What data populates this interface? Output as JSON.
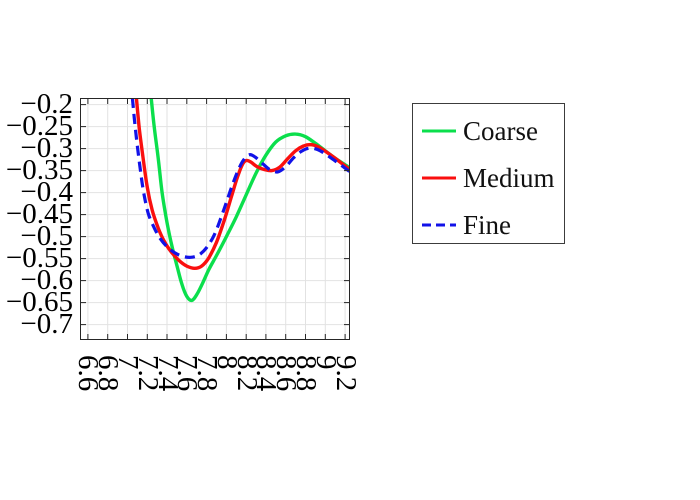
{
  "figure": {
    "background": "#ffffff"
  },
  "chart_data": {
    "type": "line",
    "title": "",
    "xlabel": "",
    "ylabel": "",
    "xlim": [
      6.52,
      9.25
    ],
    "ylim": [
      -0.735,
      -0.185
    ],
    "grid": true,
    "axis_color": "#262626",
    "grid_color": "#e2e2e2",
    "tick_label_color": "#000000",
    "x_ticks": {
      "values": [
        6.6,
        6.8,
        7,
        7.2,
        7.4,
        7.6,
        7.8,
        8,
        8.2,
        8.4,
        8.6,
        8.8,
        9,
        9.2
      ],
      "labels": [
        "6.6",
        "6.8",
        "7",
        "7.2",
        "7.4",
        "7.6",
        "7.8",
        "8",
        "8.2",
        "8.4",
        "8.6",
        "8.8",
        "9",
        "9.2"
      ],
      "rotation_deg": 90
    },
    "y_ticks": {
      "values": [
        -0.2,
        -0.25,
        -0.3,
        -0.35,
        -0.4,
        -0.45,
        -0.5,
        -0.55,
        -0.6,
        -0.65,
        -0.7
      ],
      "labels": [
        "−0.2",
        "−0.25",
        "−0.3",
        "−0.35",
        "−0.4",
        "−0.45",
        "−0.5",
        "−0.55",
        "−0.6",
        "−0.65",
        "−0.7"
      ]
    },
    "legend": {
      "position": "outside-right",
      "border_color": "#3c3c3c",
      "text_color": "#111111"
    },
    "series": [
      {
        "name": "Coarse",
        "color": "#0bdf4c",
        "line_style": "solid",
        "line_width": 3.4,
        "dash": null,
        "points": [
          [
            7.24,
            -0.185
          ],
          [
            7.27,
            -0.25
          ],
          [
            7.31,
            -0.32
          ],
          [
            7.35,
            -0.4
          ],
          [
            7.4,
            -0.468
          ],
          [
            7.45,
            -0.522
          ],
          [
            7.5,
            -0.566
          ],
          [
            7.55,
            -0.608
          ],
          [
            7.6,
            -0.636
          ],
          [
            7.65,
            -0.645
          ],
          [
            7.7,
            -0.632
          ],
          [
            7.76,
            -0.606
          ],
          [
            7.82,
            -0.576
          ],
          [
            7.9,
            -0.543
          ],
          [
            8.0,
            -0.5
          ],
          [
            8.1,
            -0.455
          ],
          [
            8.2,
            -0.405
          ],
          [
            8.3,
            -0.356
          ],
          [
            8.4,
            -0.315
          ],
          [
            8.5,
            -0.285
          ],
          [
            8.6,
            -0.271
          ],
          [
            8.7,
            -0.267
          ],
          [
            8.8,
            -0.273
          ],
          [
            8.9,
            -0.288
          ],
          [
            9.0,
            -0.305
          ],
          [
            9.1,
            -0.322
          ],
          [
            9.25,
            -0.344
          ]
        ]
      },
      {
        "name": "Medium",
        "color": "#fa0f0f",
        "line_style": "solid",
        "line_width": 3.4,
        "dash": null,
        "points": [
          [
            7.09,
            -0.185
          ],
          [
            7.12,
            -0.255
          ],
          [
            7.16,
            -0.325
          ],
          [
            7.2,
            -0.388
          ],
          [
            7.25,
            -0.44
          ],
          [
            7.31,
            -0.48
          ],
          [
            7.37,
            -0.51
          ],
          [
            7.44,
            -0.534
          ],
          [
            7.52,
            -0.554
          ],
          [
            7.6,
            -0.567
          ],
          [
            7.68,
            -0.572
          ],
          [
            7.75,
            -0.567
          ],
          [
            7.82,
            -0.549
          ],
          [
            7.9,
            -0.513
          ],
          [
            7.98,
            -0.462
          ],
          [
            8.05,
            -0.41
          ],
          [
            8.11,
            -0.366
          ],
          [
            8.16,
            -0.337
          ],
          [
            8.2,
            -0.327
          ],
          [
            8.25,
            -0.331
          ],
          [
            8.31,
            -0.341
          ],
          [
            8.39,
            -0.348
          ],
          [
            8.46,
            -0.35
          ],
          [
            8.54,
            -0.342
          ],
          [
            8.62,
            -0.323
          ],
          [
            8.7,
            -0.305
          ],
          [
            8.78,
            -0.294
          ],
          [
            8.85,
            -0.291
          ],
          [
            8.92,
            -0.295
          ],
          [
            9.0,
            -0.306
          ],
          [
            9.1,
            -0.322
          ],
          [
            9.18,
            -0.336
          ],
          [
            9.25,
            -0.348
          ]
        ]
      },
      {
        "name": "Fine",
        "color": "#1212e8",
        "line_style": "dashed",
        "line_width": 3.2,
        "dash": [
          10,
          6
        ],
        "points": [
          [
            7.05,
            -0.185
          ],
          [
            7.08,
            -0.255
          ],
          [
            7.12,
            -0.33
          ],
          [
            7.16,
            -0.395
          ],
          [
            7.21,
            -0.447
          ],
          [
            7.27,
            -0.48
          ],
          [
            7.33,
            -0.504
          ],
          [
            7.4,
            -0.523
          ],
          [
            7.48,
            -0.537
          ],
          [
            7.56,
            -0.545
          ],
          [
            7.64,
            -0.547
          ],
          [
            7.72,
            -0.542
          ],
          [
            7.8,
            -0.525
          ],
          [
            7.88,
            -0.495
          ],
          [
            7.96,
            -0.448
          ],
          [
            8.04,
            -0.396
          ],
          [
            8.11,
            -0.354
          ],
          [
            8.17,
            -0.327
          ],
          [
            8.23,
            -0.314
          ],
          [
            8.29,
            -0.319
          ],
          [
            8.36,
            -0.333
          ],
          [
            8.44,
            -0.348
          ],
          [
            8.52,
            -0.353
          ],
          [
            8.6,
            -0.341
          ],
          [
            8.68,
            -0.321
          ],
          [
            8.76,
            -0.306
          ],
          [
            8.84,
            -0.299
          ],
          [
            8.92,
            -0.302
          ],
          [
            9.0,
            -0.312
          ],
          [
            9.1,
            -0.328
          ],
          [
            9.18,
            -0.341
          ],
          [
            9.25,
            -0.353
          ]
        ]
      }
    ]
  }
}
